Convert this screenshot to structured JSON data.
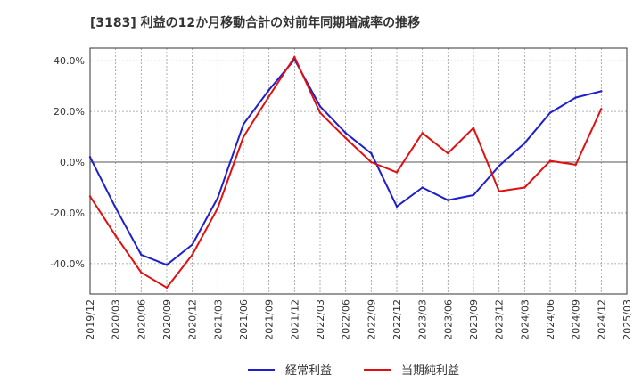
{
  "chart_data": {
    "type": "line",
    "title": "[3183]  利益の12か月移動合計の対前年同期増減率の推移",
    "xlabel": "",
    "ylabel": "",
    "ylim": [
      -52,
      45
    ],
    "yticks": [
      -40,
      -20,
      0,
      20,
      40
    ],
    "ytick_labels": [
      "-40.0%",
      "-20.0%",
      "0.0%",
      "20.0%",
      "40.0%"
    ],
    "x_tick_labels": [
      "2019/12",
      "2020/03",
      "2020/06",
      "2020/09",
      "2020/12",
      "2021/03",
      "2021/06",
      "2021/09",
      "2021/12",
      "2022/03",
      "2022/06",
      "2022/09",
      "2022/12",
      "2023/03",
      "2023/06",
      "2023/09",
      "2023/12",
      "2024/03",
      "2024/06",
      "2024/09",
      "2024/12",
      "2025/03"
    ],
    "grid": true,
    "legend_position": "bottom",
    "series": [
      {
        "name": "経常利益",
        "color": "#1f1fcc",
        "values": [
          2.0,
          -18.0,
          -36.5,
          -40.5,
          -32.5,
          -14.0,
          15.0,
          28.5,
          40.5,
          22.0,
          11.5,
          3.5,
          -17.5,
          -10.0,
          -15.0,
          -13.0,
          -1.5,
          7.5,
          19.5,
          25.5,
          28.0,
          null
        ]
      },
      {
        "name": "当期純利益",
        "color": "#e01010",
        "values": [
          -13.5,
          -29.0,
          -43.5,
          -49.5,
          -36.5,
          -18.0,
          10.0,
          26.0,
          41.5,
          19.5,
          9.5,
          0.0,
          -4.0,
          11.5,
          3.5,
          13.5,
          -11.5,
          -10.0,
          0.5,
          -1.0,
          21.0,
          null
        ]
      }
    ]
  }
}
